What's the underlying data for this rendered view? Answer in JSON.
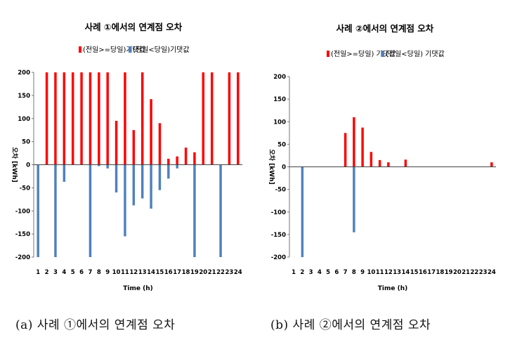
{
  "chart_data": [
    {
      "type": "bar",
      "title": "사례 ①에서의 연계점 오차",
      "xlabel": "Time (h)",
      "ylabel": "오차 [kWh]",
      "ylim": [
        -200,
        200
      ],
      "yticks": [
        200,
        150,
        100,
        50,
        0,
        -50,
        -100,
        -150,
        -200
      ],
      "categories": [
        "1",
        "2",
        "3",
        "4",
        "5",
        "6",
        "7",
        "8",
        "9",
        "10",
        "11",
        "12",
        "13",
        "14",
        "15",
        "16",
        "17",
        "18",
        "19",
        "20",
        "21",
        "22",
        "23",
        "24"
      ],
      "series": [
        {
          "name": "(전일>=당일)기댓값",
          "color": "#ff0000",
          "values": [
            0,
            200,
            200,
            200,
            200,
            200,
            200,
            200,
            200,
            95,
            200,
            75,
            200,
            142,
            90,
            13,
            18,
            37,
            27,
            200,
            200,
            0,
            200,
            200
          ]
        },
        {
          "name": "(전일<당일)기댓값",
          "color": "#4f81bd",
          "values": [
            -200,
            0,
            -200,
            -37,
            0,
            0,
            -200,
            -3,
            -8,
            -60,
            -155,
            -88,
            -73,
            -95,
            -55,
            -30,
            -8,
            0,
            -200,
            0,
            0,
            -200,
            0,
            0
          ]
        }
      ],
      "legend_position": "top-center",
      "grid": false
    },
    {
      "type": "bar",
      "title": "사례 ②에서의 연계점 오차",
      "xlabel": "Time (h)",
      "ylabel": "오차 [kWh]",
      "ylim": [
        -200,
        200
      ],
      "yticks": [
        200,
        150,
        100,
        50,
        0,
        -50,
        -100,
        -150,
        -200
      ],
      "categories": [
        "1",
        "2",
        "3",
        "4",
        "5",
        "6",
        "7",
        "8",
        "9",
        "10",
        "11",
        "12",
        "13",
        "14",
        "15",
        "16",
        "17",
        "18",
        "19",
        "20",
        "21",
        "22",
        "23",
        "24"
      ],
      "series": [
        {
          "name": "(전일>=당일) 기댓값",
          "color": "#ff0000",
          "values": [
            0,
            0,
            0,
            0,
            0,
            0,
            75,
            110,
            87,
            33,
            15,
            10,
            0,
            16,
            0,
            0,
            0,
            0,
            0,
            0,
            0,
            0,
            0,
            10
          ]
        },
        {
          "name": "(전일<당일) 기댓값",
          "color": "#4f81bd",
          "values": [
            0,
            -200,
            0,
            0,
            0,
            0,
            0,
            -145,
            0,
            0,
            0,
            0,
            0,
            0,
            0,
            0,
            0,
            0,
            0,
            0,
            0,
            0,
            0,
            0
          ]
        }
      ],
      "legend_position": "top-center",
      "grid": false
    }
  ],
  "captions": [
    "(a) 사례 ①에서의 연계점 오차",
    "(b) 사례 ②에서의 연계점 오차"
  ]
}
